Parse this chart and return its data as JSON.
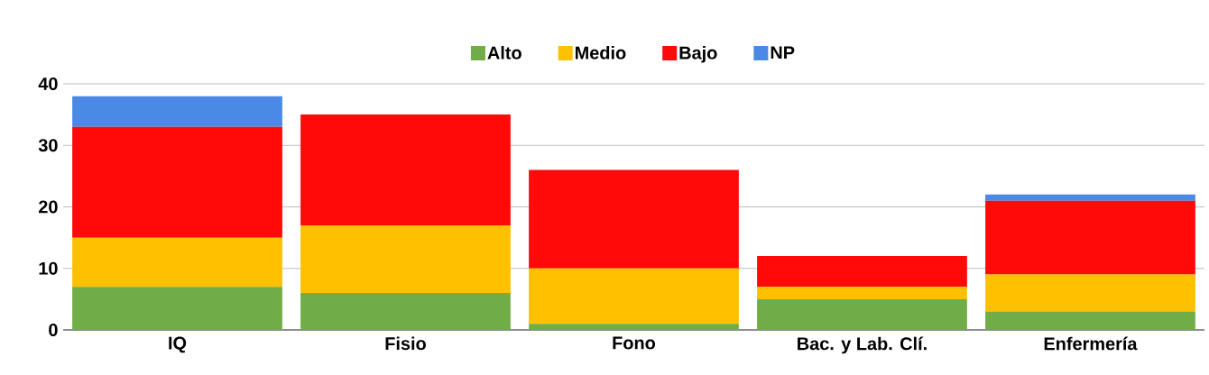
{
  "chart_data": {
    "type": "bar",
    "stacked": true,
    "categories": [
      "IQ",
      "Fisio",
      "Fono",
      "Bac. y Lab. Clí.",
      "Enfermería"
    ],
    "series": [
      {
        "name": "Alto",
        "color": "#70ad47",
        "values": [
          7,
          6,
          1,
          5,
          3
        ]
      },
      {
        "name": "Medio",
        "color": "#ffc000",
        "values": [
          8,
          11,
          9,
          2,
          6
        ]
      },
      {
        "name": "Bajo",
        "color": "#ff0909",
        "values": [
          18,
          18,
          16,
          5,
          12
        ]
      },
      {
        "name": "NP",
        "color": "#4a89e6",
        "values": [
          5,
          null,
          null,
          null,
          1
        ]
      }
    ],
    "ylim": [
      0,
      40
    ],
    "yticks": [
      0,
      10,
      20,
      30,
      40
    ],
    "grid": "y",
    "legend": "top"
  }
}
